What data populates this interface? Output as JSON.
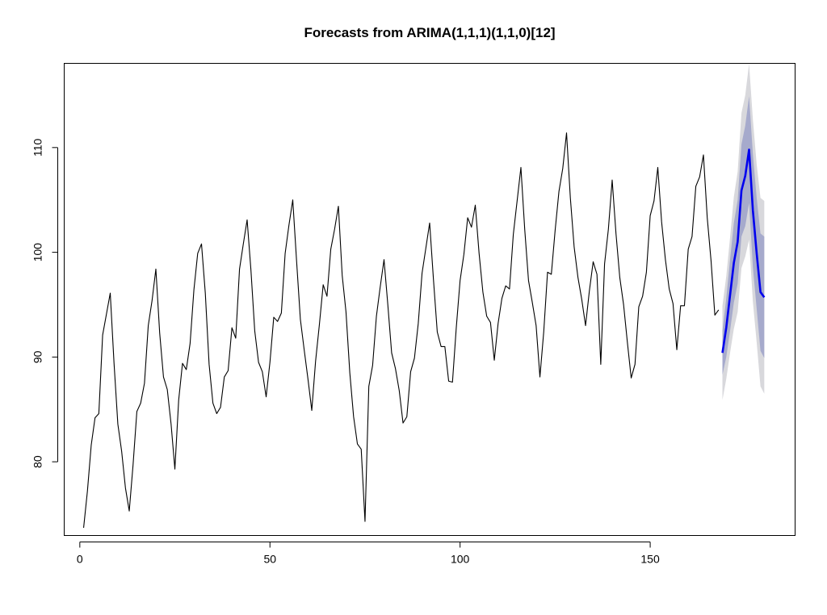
{
  "chart_data": {
    "type": "line",
    "title": "Forecasts from ARIMA(1,1,1)(1,1,0)[12]",
    "xlabel": "",
    "ylabel": "",
    "xlim": [
      -4,
      188
    ],
    "ylim": [
      73,
      118
    ],
    "x_ticks": [
      0,
      50,
      100,
      150
    ],
    "y_ticks": [
      80,
      90,
      100,
      110
    ],
    "grid": false,
    "legend": "none",
    "colors": {
      "series": "#000000",
      "forecast": "#0000ee",
      "band95": "#d8d8dc",
      "band80": "#a6aacc"
    },
    "series": [
      {
        "x_start": 1,
        "values": [
          73.7,
          77.2,
          81.6,
          84.2,
          84.6,
          92.1,
          94.1,
          96.1,
          89.4,
          83.6,
          81.0,
          77.5,
          75.3,
          79.7,
          84.8,
          85.6,
          87.5,
          93.0,
          95.4,
          98.4,
          92.3,
          88.1,
          86.9,
          83.6,
          79.3,
          85.9,
          89.4,
          88.8,
          91.3,
          96.4,
          99.9,
          100.8,
          96.1,
          89.3,
          85.6,
          84.6,
          85.2,
          88.1,
          88.7,
          92.8,
          91.8,
          98.4,
          100.8,
          103.1,
          98.3,
          92.5,
          89.5,
          88.6,
          86.2,
          89.5,
          93.8,
          93.4,
          94.2,
          99.9,
          102.6,
          105.0,
          99.2,
          93.6,
          90.7,
          87.9,
          84.9,
          89.6,
          93.1,
          96.9,
          95.8,
          100.3,
          102.2,
          104.4,
          97.8,
          94.3,
          88.5,
          84.3,
          81.7,
          81.2,
          74.3,
          87.2,
          89.2,
          93.9,
          96.7,
          99.3,
          95.0,
          90.4,
          88.9,
          86.8,
          83.7,
          84.3,
          88.6,
          89.9,
          93.2,
          98.0,
          100.4,
          102.8,
          97.4,
          92.4,
          91.0,
          91.0,
          87.7,
          87.6,
          92.8,
          97.3,
          99.8,
          103.3,
          102.4,
          104.5,
          99.9,
          96.2,
          93.9,
          93.3,
          89.7,
          93.2,
          95.6,
          96.8,
          96.5,
          101.7,
          104.9,
          108.1,
          102.2,
          97.3,
          95.2,
          93.0,
          88.1,
          92.4,
          98.1,
          97.9,
          102.1,
          105.8,
          108.0,
          111.4,
          105.2,
          100.5,
          97.6,
          95.5,
          93.0,
          96.3,
          99.1,
          97.9,
          89.3,
          98.9,
          102.2,
          106.9,
          101.8,
          97.6,
          95.0,
          91.4,
          88.0,
          89.3,
          94.8,
          95.8,
          98.1,
          103.5,
          104.9,
          108.1,
          102.9,
          99.3,
          96.5,
          95.1,
          90.7,
          94.9,
          94.9,
          100.3,
          101.5,
          106.3,
          107.2,
          109.3,
          103.3,
          99.2,
          94.0,
          94.5
        ]
      },
      {
        "name": "Forecast",
        "x": [
          169,
          170,
          171,
          172,
          173,
          174,
          175,
          176,
          177,
          178,
          179,
          180
        ],
        "values": [
          90.4,
          92.8,
          95.9,
          99.0,
          101.0,
          105.9,
          107.3,
          109.8,
          104.0,
          99.9,
          96.2,
          95.7
        ],
        "lo80": [
          88.3,
          90.0,
          92.5,
          95.2,
          97.0,
          101.5,
          102.5,
          104.7,
          98.6,
          94.6,
          90.6,
          89.9
        ],
        "hi80": [
          92.5,
          95.6,
          99.3,
          102.8,
          105.0,
          110.3,
          112.1,
          114.9,
          109.4,
          105.2,
          101.8,
          101.5
        ],
        "lo95": [
          85.9,
          87.9,
          90.4,
          92.7,
          94.3,
          98.5,
          99.6,
          101.2,
          95.3,
          91.4,
          87.2,
          86.5
        ],
        "hi95": [
          94.9,
          97.7,
          101.4,
          105.3,
          107.7,
          113.3,
          115.0,
          118.0,
          112.7,
          108.4,
          105.2,
          104.9
        ]
      }
    ]
  }
}
